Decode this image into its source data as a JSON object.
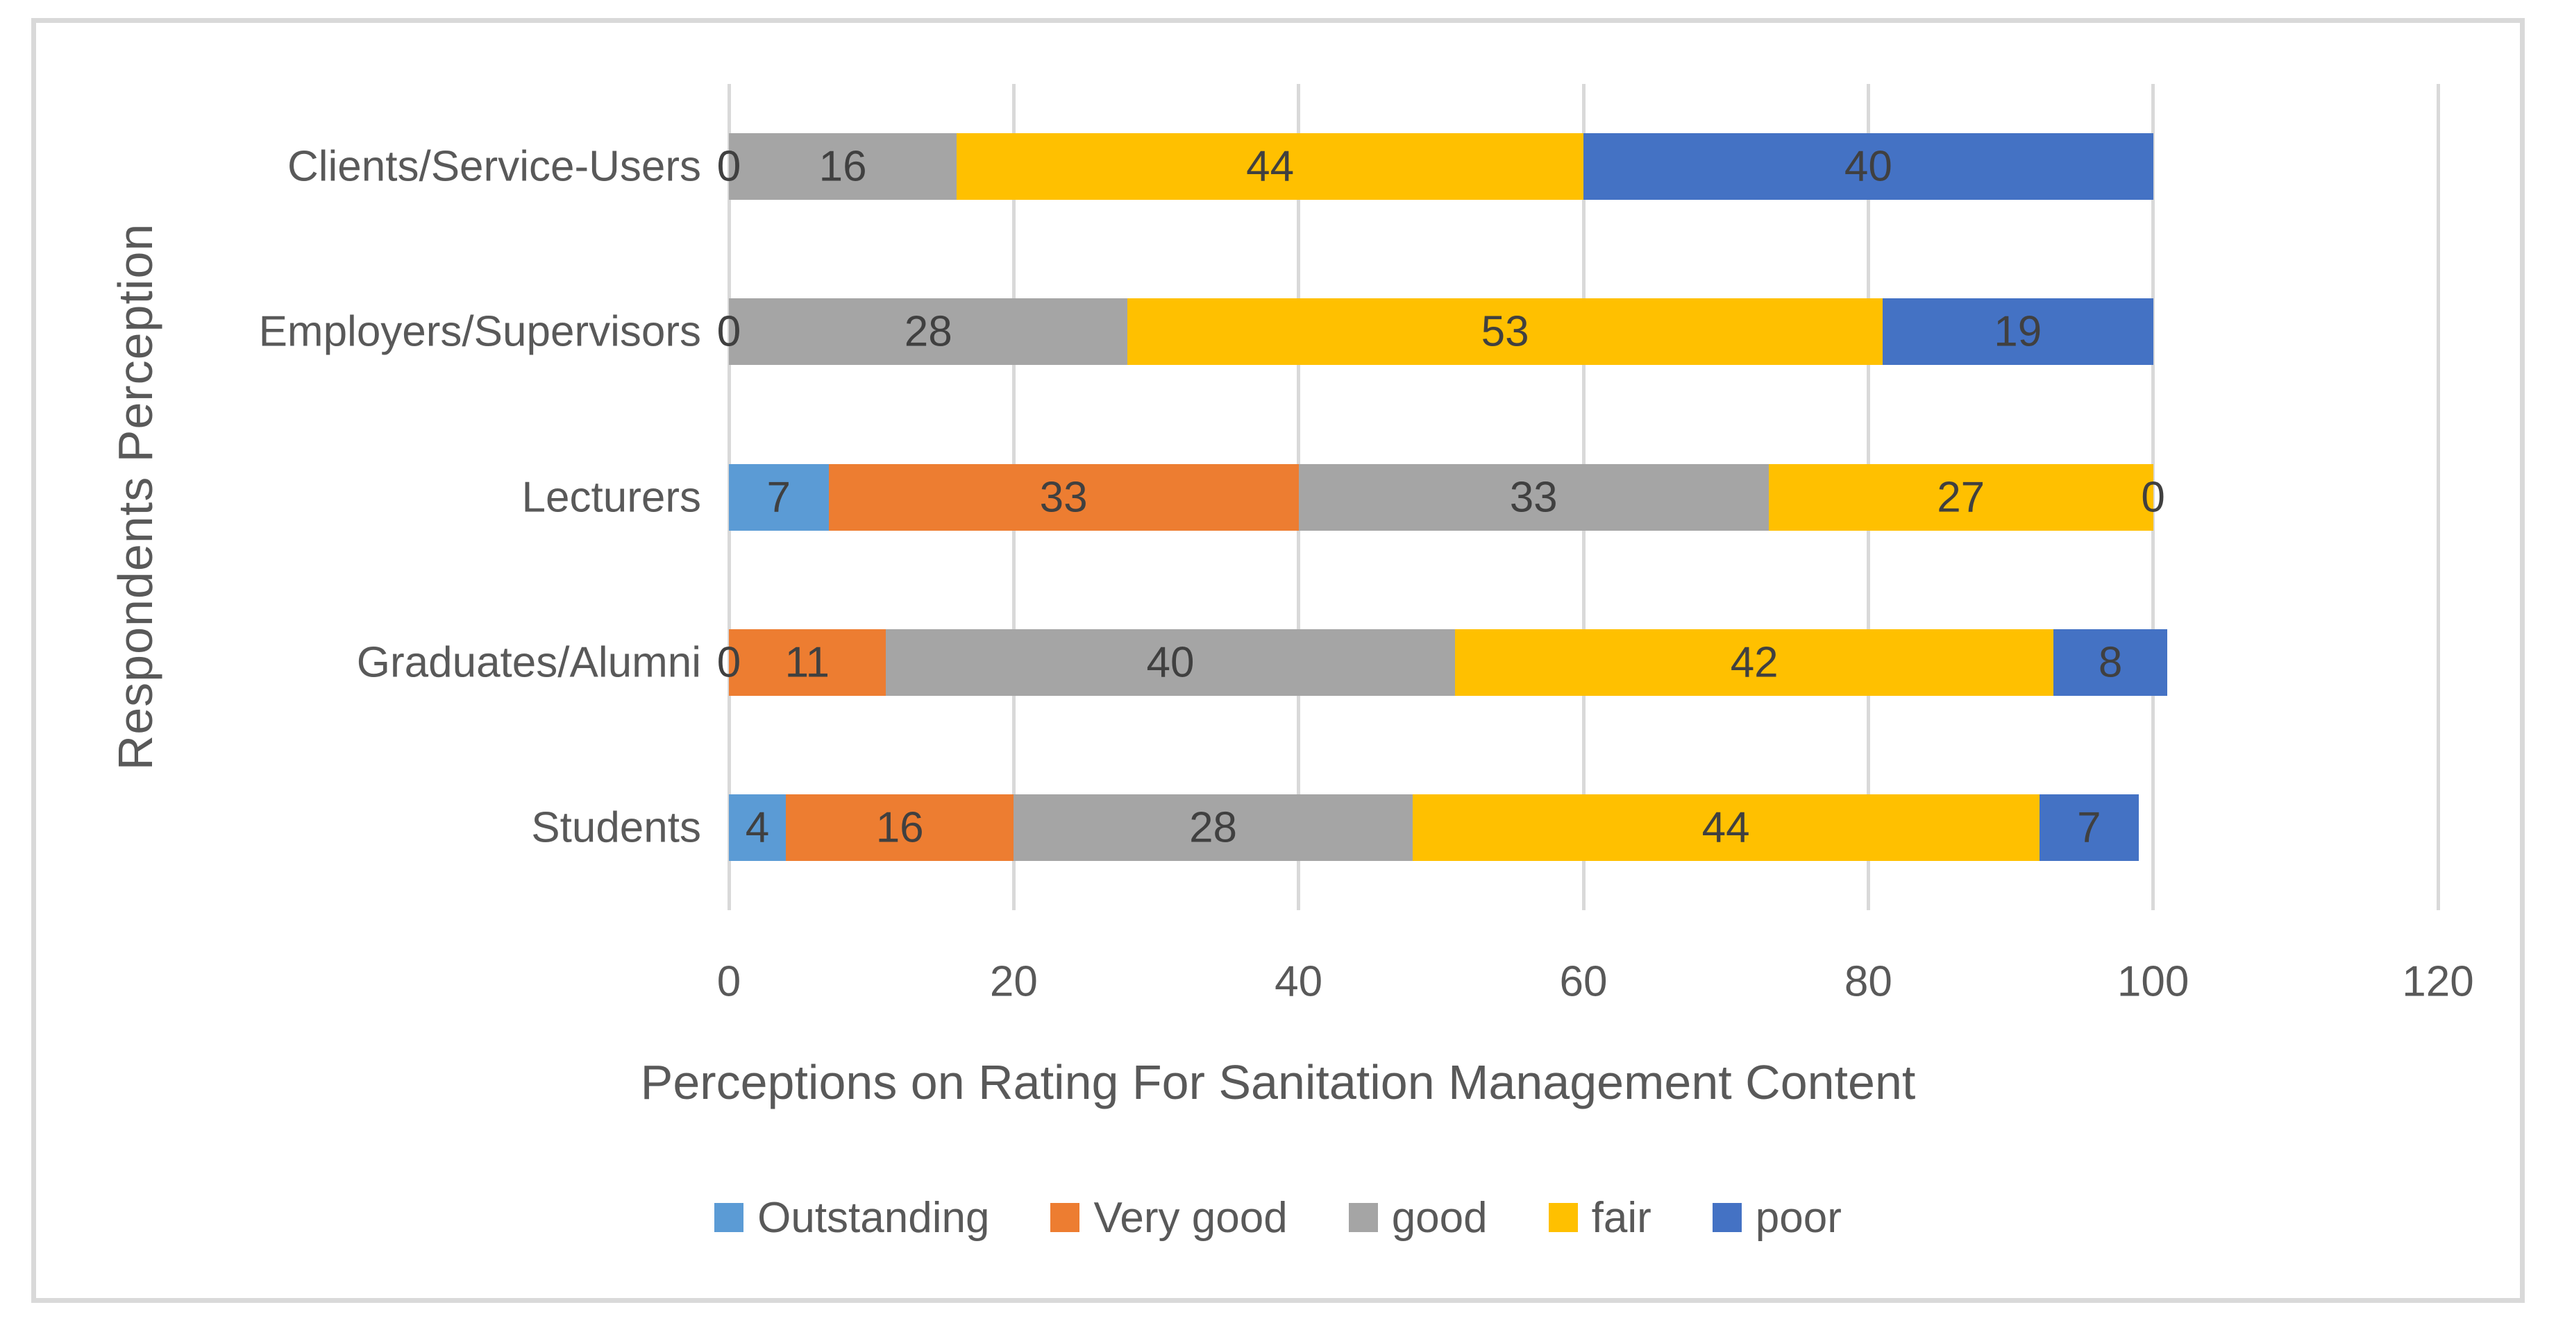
{
  "chart_data": {
    "type": "bar",
    "orientation": "horizontal",
    "stacked": true,
    "title": "",
    "xlabel": "Perceptions on Rating For Sanitation Management Content",
    "ylabel": "Respondents Perception",
    "xlim": [
      0,
      120
    ],
    "xticks": [
      0,
      20,
      40,
      60,
      80,
      100,
      120
    ],
    "grid": "vertical gridlines on",
    "legend_position": "bottom",
    "data_labels": true,
    "categories": [
      "Clients/Service-Users",
      "Employers/Supervisors",
      "Lecturers",
      "Graduates/Alumni",
      "Students"
    ],
    "series": [
      {
        "name": "Outstanding",
        "color": "#5B9BD5",
        "values": [
          0,
          0,
          7,
          0,
          4
        ]
      },
      {
        "name": "Very good",
        "color": "#ED7D31",
        "values": [
          0,
          0,
          33,
          11,
          16
        ]
      },
      {
        "name": "good",
        "color": "#A5A5A5",
        "values": [
          16,
          28,
          33,
          40,
          28
        ]
      },
      {
        "name": "fair",
        "color": "#FFC000",
        "values": [
          44,
          53,
          27,
          42,
          44
        ]
      },
      {
        "name": "poor",
        "color": "#4472C4",
        "values": [
          40,
          19,
          0,
          8,
          7
        ]
      }
    ],
    "colors": {
      "axis_text": "#595959",
      "data_label_text": "#404040",
      "gridline": "#D9D9D9",
      "frame_border": "#D9D9D9",
      "background": "#FFFFFF"
    }
  }
}
